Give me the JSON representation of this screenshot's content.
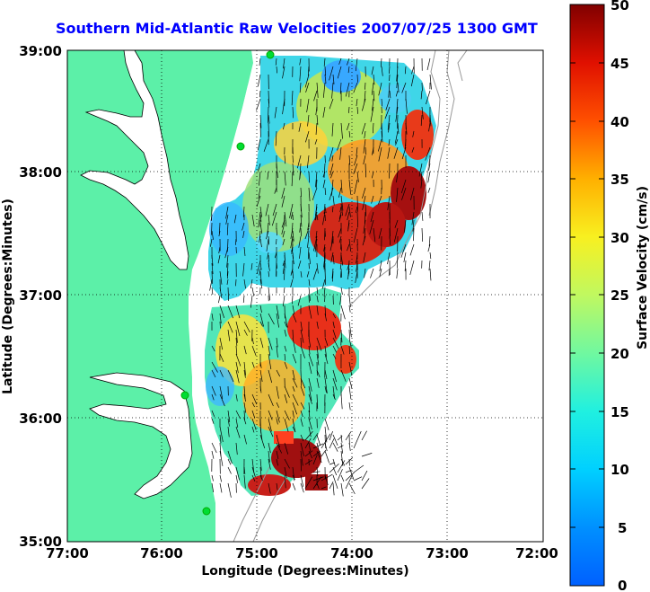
{
  "title": "Southern Mid-Atlantic Raw Velocities 2007/07/25 1300 GMT",
  "map": {
    "xlabel": "Longitude (Degrees:Minutes)",
    "ylabel": "Latitude (Degrees:Minutes)",
    "x_ticks": [
      "77:00",
      "76:00",
      "75:00",
      "74:00",
      "73:00",
      "72:00"
    ],
    "y_ticks": [
      "39:00",
      "38:00",
      "37:00",
      "36:00",
      "35:00"
    ],
    "lon_range": [
      -77,
      -72
    ],
    "lat_range": [
      35,
      39
    ],
    "grid": true,
    "land_color": "#5cf0a8",
    "water_color": "#ffffff",
    "arrow_color": "#000000",
    "station_color": "#00dd33"
  },
  "colorbar": {
    "label": "Surface Velocity (cm/s)",
    "ticks": [
      "50",
      "45",
      "40",
      "35",
      "30",
      "25",
      "20",
      "15",
      "10",
      "5",
      "0"
    ],
    "range": [
      0,
      50
    ],
    "colormap": "jet"
  }
}
